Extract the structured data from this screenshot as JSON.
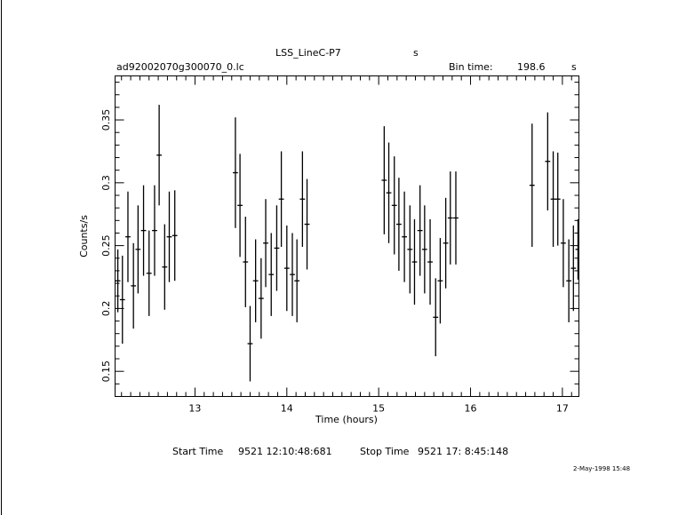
{
  "header": {
    "title": "LSS_LineC-P7",
    "title_unit": "s",
    "filename": "ad92002070g300070_0.lc",
    "bin_time_label": "Bin time:",
    "bin_time_value": "198.6",
    "bin_time_unit": "s"
  },
  "footer": {
    "start_label": "Start Time",
    "start_value": "9521 12:10:48:681",
    "stop_label": "Stop Time",
    "stop_value": "9521 17: 8:45:148",
    "stamp": "2-May-1998 15:48"
  },
  "chart_data": {
    "type": "scatter",
    "xlabel": "Time (hours)",
    "ylabel": "Counts/s",
    "xlim": [
      12.13,
      17.18
    ],
    "ylim": [
      0.13,
      0.385
    ],
    "x_ticks": [
      13,
      14,
      15,
      16,
      17
    ],
    "y_ticks": [
      0.15,
      0.2,
      0.25,
      0.3,
      0.35
    ],
    "y_tick_labels": [
      "0.15",
      "0.2",
      "0.25",
      "0.3",
      "0.35"
    ],
    "grid": false,
    "series": [
      {
        "x": [
          12.16,
          12.21,
          12.27,
          12.33,
          12.38,
          12.44,
          12.5,
          12.56,
          12.61,
          12.67,
          12.72,
          12.78,
          13.44,
          13.49,
          13.55,
          13.6,
          13.66,
          13.72,
          13.77,
          13.83,
          13.89,
          13.94,
          14.0,
          14.06,
          14.11,
          14.17,
          14.22,
          15.06,
          15.11,
          15.17,
          15.22,
          15.28,
          15.34,
          15.39,
          15.45,
          15.5,
          15.56,
          15.62,
          15.67,
          15.73,
          15.78,
          15.84,
          16.67,
          16.84,
          16.9,
          16.95,
          17.01,
          17.07,
          17.12,
          17.17
        ],
        "y": [
          0.222,
          0.207,
          0.257,
          0.218,
          0.247,
          0.262,
          0.228,
          0.262,
          0.322,
          0.233,
          0.257,
          0.258,
          0.308,
          0.282,
          0.237,
          0.172,
          0.222,
          0.208,
          0.252,
          0.227,
          0.248,
          0.287,
          0.232,
          0.227,
          0.222,
          0.287,
          0.267,
          0.302,
          0.292,
          0.282,
          0.267,
          0.257,
          0.247,
          0.237,
          0.262,
          0.247,
          0.237,
          0.193,
          0.222,
          0.252,
          0.272,
          0.272,
          0.298,
          0.317,
          0.287,
          0.287,
          0.252,
          0.222,
          0.232,
          0.247
        ],
        "yerr": [
          0.025,
          0.035,
          0.036,
          0.034,
          0.035,
          0.036,
          0.034,
          0.036,
          0.04,
          0.034,
          0.036,
          0.036,
          0.044,
          0.041,
          0.036,
          0.03,
          0.033,
          0.032,
          0.035,
          0.033,
          0.034,
          0.038,
          0.034,
          0.033,
          0.033,
          0.038,
          0.036,
          0.043,
          0.04,
          0.039,
          0.037,
          0.036,
          0.035,
          0.034,
          0.036,
          0.035,
          0.034,
          0.031,
          0.034,
          0.036,
          0.037,
          0.037,
          0.049,
          0.039,
          0.038,
          0.037,
          0.035,
          0.033,
          0.034,
          0.024
        ],
        "xerr": 0.028
      }
    ]
  }
}
